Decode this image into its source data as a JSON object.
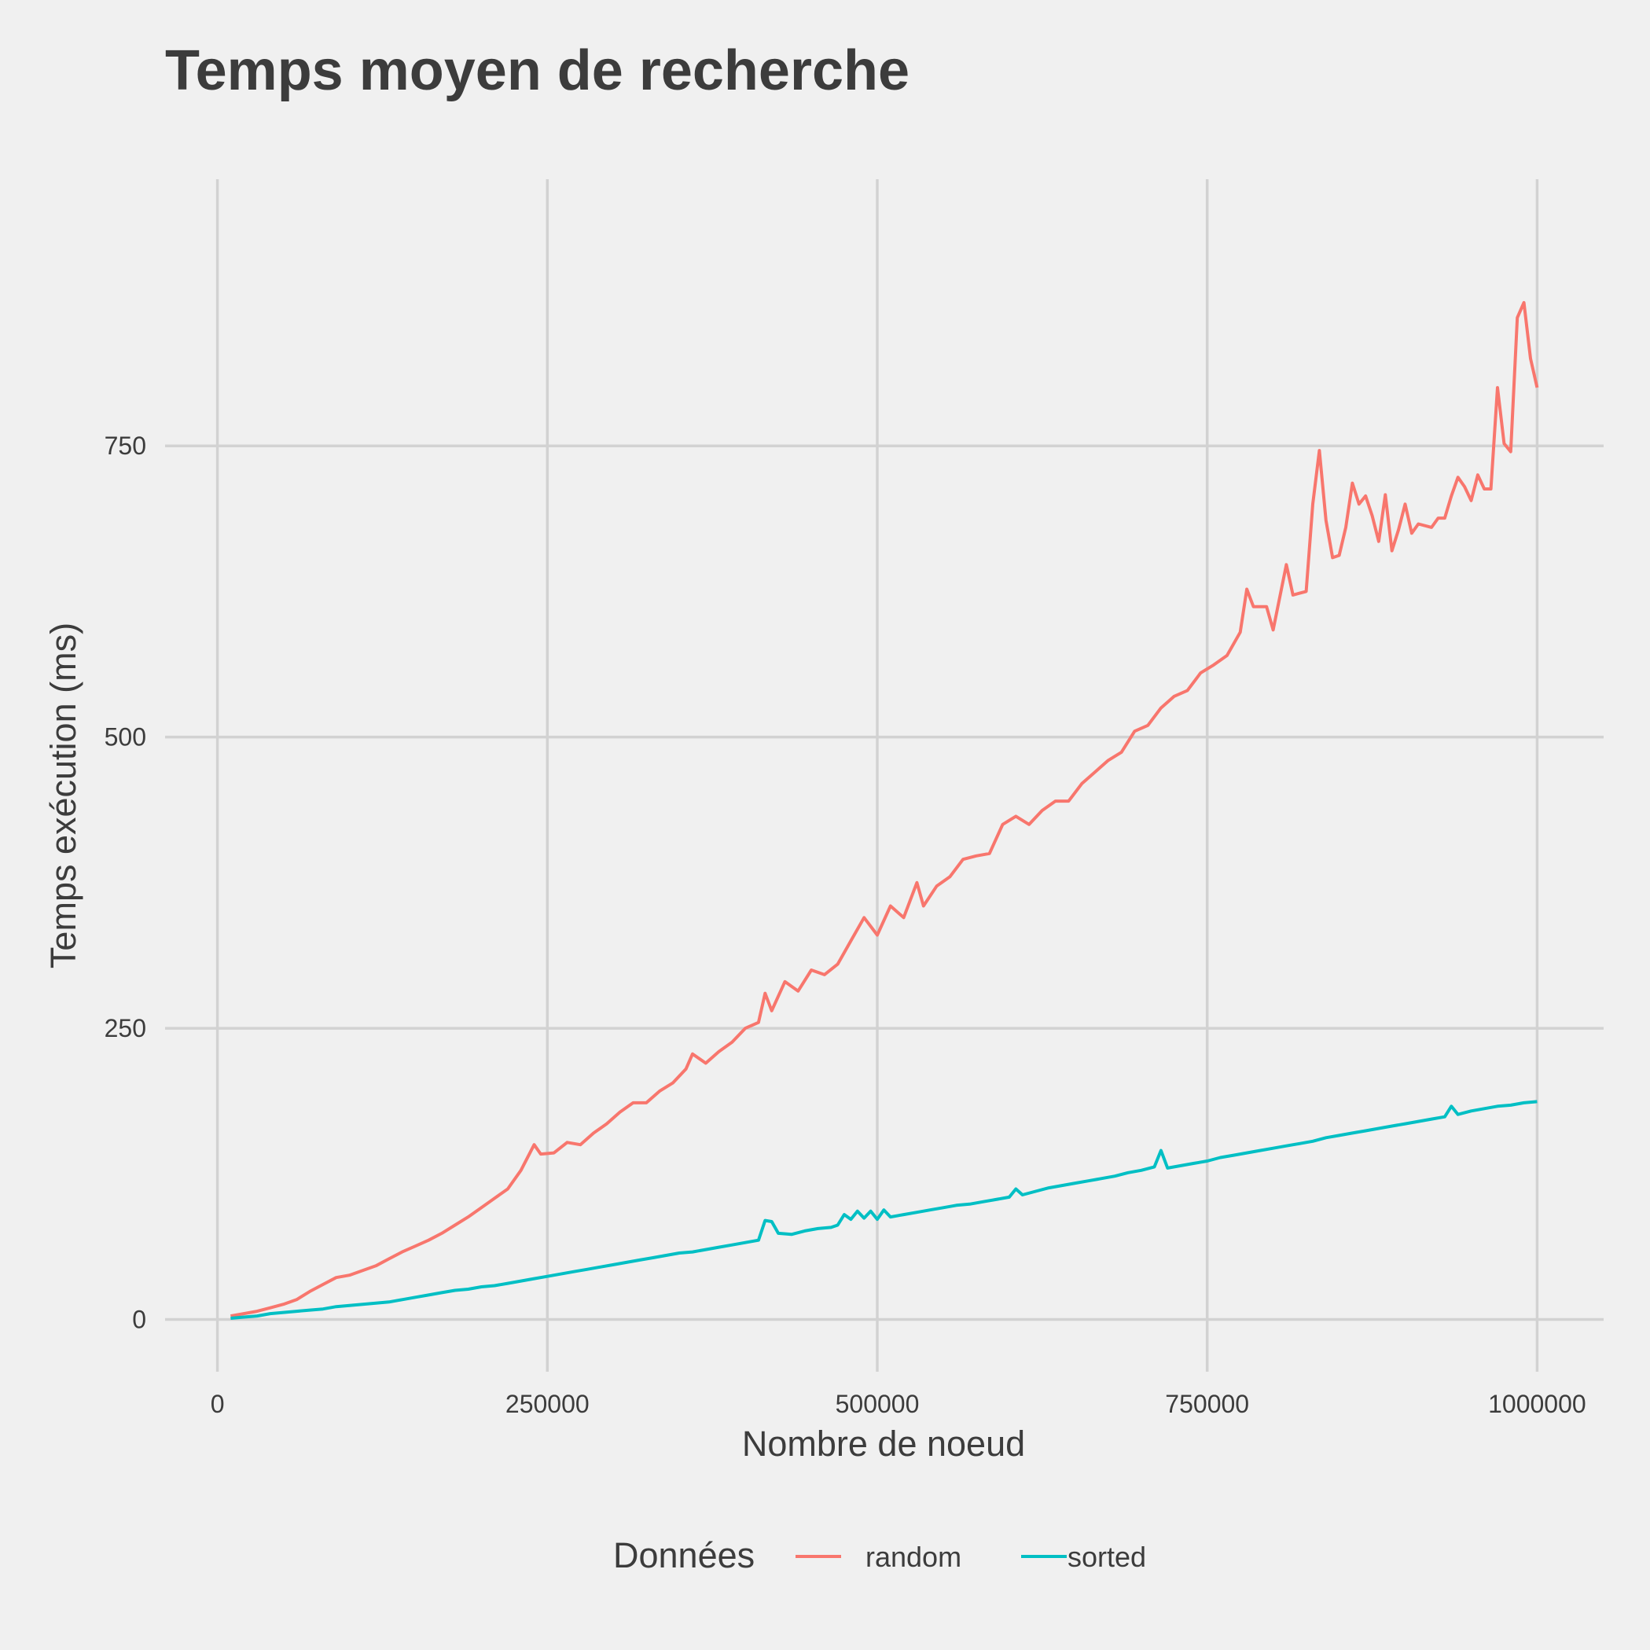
{
  "colors": {
    "background": "#f0f0f0",
    "grid": "#d2d2d2",
    "text": "#3c3c3c"
  },
  "chart_data": {
    "type": "line",
    "title": "Temps moyen de recherche",
    "xlabel": "Nombre de noeud",
    "ylabel": "Temps exécution (ms)",
    "xlim": [
      -40000,
      1050000
    ],
    "ylim": [
      -50,
      980
    ],
    "x_ticks": [
      0,
      250000,
      500000,
      750000,
      1000000
    ],
    "x_tick_labels": [
      "0",
      "250000",
      "500000",
      "750000",
      "1000000"
    ],
    "y_ticks": [
      0,
      250,
      500,
      750
    ],
    "y_tick_labels": [
      "0",
      "250",
      "500",
      "750"
    ],
    "grid": true,
    "legend": {
      "title": "Données",
      "position": "bottom"
    },
    "series": [
      {
        "name": "random",
        "color": "#f8766d",
        "points": [
          [
            10000,
            3
          ],
          [
            20000,
            5
          ],
          [
            30000,
            7
          ],
          [
            40000,
            10
          ],
          [
            50000,
            13
          ],
          [
            60000,
            17
          ],
          [
            70000,
            24
          ],
          [
            80000,
            30
          ],
          [
            90000,
            36
          ],
          [
            100000,
            38
          ],
          [
            110000,
            42
          ],
          [
            120000,
            46
          ],
          [
            130000,
            52
          ],
          [
            140000,
            58
          ],
          [
            150000,
            63
          ],
          [
            160000,
            68
          ],
          [
            170000,
            74
          ],
          [
            180000,
            81
          ],
          [
            190000,
            88
          ],
          [
            200000,
            96
          ],
          [
            210000,
            104
          ],
          [
            220000,
            112
          ],
          [
            230000,
            128
          ],
          [
            240000,
            150
          ],
          [
            245000,
            142
          ],
          [
            255000,
            143
          ],
          [
            265000,
            152
          ],
          [
            275000,
            150
          ],
          [
            285000,
            160
          ],
          [
            295000,
            168
          ],
          [
            305000,
            178
          ],
          [
            315000,
            186
          ],
          [
            325000,
            186
          ],
          [
            335000,
            196
          ],
          [
            345000,
            203
          ],
          [
            355000,
            215
          ],
          [
            360000,
            228
          ],
          [
            370000,
            220
          ],
          [
            380000,
            230
          ],
          [
            390000,
            238
          ],
          [
            400000,
            250
          ],
          [
            410000,
            255
          ],
          [
            415000,
            280
          ],
          [
            420000,
            265
          ],
          [
            430000,
            290
          ],
          [
            440000,
            282
          ],
          [
            450000,
            300
          ],
          [
            460000,
            296
          ],
          [
            470000,
            305
          ],
          [
            480000,
            325
          ],
          [
            490000,
            345
          ],
          [
            500000,
            330
          ],
          [
            510000,
            355
          ],
          [
            520000,
            345
          ],
          [
            530000,
            375
          ],
          [
            535000,
            355
          ],
          [
            545000,
            372
          ],
          [
            555000,
            380
          ],
          [
            565000,
            395
          ],
          [
            575000,
            398
          ],
          [
            585000,
            400
          ],
          [
            595000,
            425
          ],
          [
            605000,
            432
          ],
          [
            615000,
            425
          ],
          [
            625000,
            437
          ],
          [
            635000,
            445
          ],
          [
            645000,
            445
          ],
          [
            655000,
            460
          ],
          [
            665000,
            470
          ],
          [
            675000,
            480
          ],
          [
            685000,
            487
          ],
          [
            695000,
            505
          ],
          [
            705000,
            510
          ],
          [
            715000,
            525
          ],
          [
            725000,
            535
          ],
          [
            735000,
            540
          ],
          [
            745000,
            555
          ],
          [
            755000,
            562
          ],
          [
            765000,
            570
          ],
          [
            775000,
            590
          ],
          [
            780000,
            627
          ],
          [
            785000,
            612
          ],
          [
            795000,
            612
          ],
          [
            800000,
            592
          ],
          [
            810000,
            648
          ],
          [
            815000,
            622
          ],
          [
            825000,
            625
          ],
          [
            830000,
            700
          ],
          [
            835000,
            746
          ],
          [
            840000,
            686
          ],
          [
            845000,
            654
          ],
          [
            850000,
            656
          ],
          [
            855000,
            680
          ],
          [
            860000,
            718
          ],
          [
            865000,
            700
          ],
          [
            870000,
            707
          ],
          [
            875000,
            690
          ],
          [
            880000,
            668
          ],
          [
            885000,
            708
          ],
          [
            890000,
            660
          ],
          [
            895000,
            678
          ],
          [
            900000,
            700
          ],
          [
            905000,
            675
          ],
          [
            910000,
            683
          ],
          [
            920000,
            680
          ],
          [
            925000,
            688
          ],
          [
            930000,
            688
          ],
          [
            935000,
            707
          ],
          [
            940000,
            723
          ],
          [
            945000,
            715
          ],
          [
            950000,
            703
          ],
          [
            955000,
            725
          ],
          [
            960000,
            713
          ],
          [
            965000,
            713
          ],
          [
            970000,
            800
          ],
          [
            975000,
            752
          ],
          [
            980000,
            745
          ],
          [
            985000,
            860
          ],
          [
            990000,
            873
          ],
          [
            995000,
            825
          ],
          [
            1000000,
            800
          ]
        ]
      },
      {
        "name": "sorted",
        "color": "#00bfc4",
        "points": [
          [
            10000,
            1
          ],
          [
            20000,
            2
          ],
          [
            30000,
            3
          ],
          [
            40000,
            5
          ],
          [
            50000,
            6
          ],
          [
            60000,
            7
          ],
          [
            70000,
            8
          ],
          [
            80000,
            9
          ],
          [
            90000,
            11
          ],
          [
            100000,
            12
          ],
          [
            110000,
            13
          ],
          [
            120000,
            14
          ],
          [
            130000,
            15
          ],
          [
            140000,
            17
          ],
          [
            150000,
            19
          ],
          [
            160000,
            21
          ],
          [
            170000,
            23
          ],
          [
            180000,
            25
          ],
          [
            190000,
            26
          ],
          [
            200000,
            28
          ],
          [
            210000,
            29
          ],
          [
            220000,
            31
          ],
          [
            230000,
            33
          ],
          [
            240000,
            35
          ],
          [
            250000,
            37
          ],
          [
            260000,
            39
          ],
          [
            270000,
            41
          ],
          [
            280000,
            43
          ],
          [
            290000,
            45
          ],
          [
            300000,
            47
          ],
          [
            310000,
            49
          ],
          [
            320000,
            51
          ],
          [
            330000,
            53
          ],
          [
            340000,
            55
          ],
          [
            350000,
            57
          ],
          [
            360000,
            58
          ],
          [
            370000,
            60
          ],
          [
            380000,
            62
          ],
          [
            390000,
            64
          ],
          [
            400000,
            66
          ],
          [
            410000,
            68
          ],
          [
            415000,
            85
          ],
          [
            420000,
            84
          ],
          [
            425000,
            74
          ],
          [
            435000,
            73
          ],
          [
            445000,
            76
          ],
          [
            455000,
            78
          ],
          [
            465000,
            79
          ],
          [
            470000,
            81
          ],
          [
            475000,
            90
          ],
          [
            480000,
            86
          ],
          [
            485000,
            93
          ],
          [
            490000,
            87
          ],
          [
            495000,
            93
          ],
          [
            500000,
            86
          ],
          [
            505000,
            94
          ],
          [
            510000,
            88
          ],
          [
            520000,
            90
          ],
          [
            530000,
            92
          ],
          [
            540000,
            94
          ],
          [
            550000,
            96
          ],
          [
            560000,
            98
          ],
          [
            570000,
            99
          ],
          [
            580000,
            101
          ],
          [
            590000,
            103
          ],
          [
            600000,
            105
          ],
          [
            605000,
            112
          ],
          [
            610000,
            107
          ],
          [
            620000,
            110
          ],
          [
            630000,
            113
          ],
          [
            640000,
            115
          ],
          [
            650000,
            117
          ],
          [
            660000,
            119
          ],
          [
            670000,
            121
          ],
          [
            680000,
            123
          ],
          [
            690000,
            126
          ],
          [
            700000,
            128
          ],
          [
            710000,
            131
          ],
          [
            715000,
            145
          ],
          [
            720000,
            130
          ],
          [
            730000,
            132
          ],
          [
            740000,
            134
          ],
          [
            750000,
            136
          ],
          [
            760000,
            139
          ],
          [
            770000,
            141
          ],
          [
            780000,
            143
          ],
          [
            790000,
            145
          ],
          [
            800000,
            147
          ],
          [
            810000,
            149
          ],
          [
            820000,
            151
          ],
          [
            830000,
            153
          ],
          [
            840000,
            156
          ],
          [
            850000,
            158
          ],
          [
            860000,
            160
          ],
          [
            870000,
            162
          ],
          [
            880000,
            164
          ],
          [
            890000,
            166
          ],
          [
            900000,
            168
          ],
          [
            910000,
            170
          ],
          [
            920000,
            172
          ],
          [
            930000,
            174
          ],
          [
            935000,
            183
          ],
          [
            940000,
            176
          ],
          [
            950000,
            179
          ],
          [
            960000,
            181
          ],
          [
            970000,
            183
          ],
          [
            980000,
            184
          ],
          [
            990000,
            186
          ],
          [
            1000000,
            187
          ]
        ]
      }
    ]
  }
}
